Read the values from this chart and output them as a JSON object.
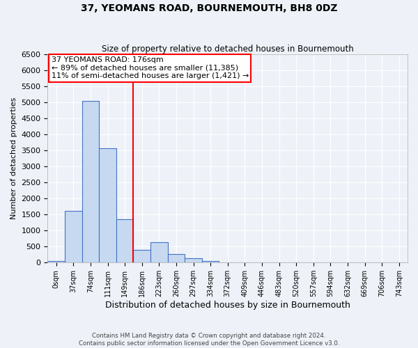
{
  "title": "37, YEOMANS ROAD, BOURNEMOUTH, BH8 0DZ",
  "subtitle": "Size of property relative to detached houses in Bournemouth",
  "xlabel": "Distribution of detached houses by size in Bournemouth",
  "ylabel": "Number of detached properties",
  "bar_labels": [
    "0sqm",
    "37sqm",
    "74sqm",
    "111sqm",
    "149sqm",
    "186sqm",
    "223sqm",
    "260sqm",
    "297sqm",
    "334sqm",
    "372sqm",
    "409sqm",
    "446sqm",
    "483sqm",
    "520sqm",
    "557sqm",
    "594sqm",
    "632sqm",
    "669sqm",
    "706sqm",
    "743sqm"
  ],
  "bar_values": [
    55,
    1610,
    5050,
    3570,
    1350,
    400,
    630,
    270,
    130,
    55,
    10,
    3,
    1,
    0,
    0,
    0,
    0,
    0,
    0,
    0,
    0
  ],
  "bar_color": "#c6d9f0",
  "bar_edgecolor": "#4472c4",
  "ylim": [
    0,
    6500
  ],
  "yticks": [
    0,
    500,
    1000,
    1500,
    2000,
    2500,
    3000,
    3500,
    4000,
    4500,
    5000,
    5500,
    6000,
    6500
  ],
  "annotation_title": "37 YEOMANS ROAD: 176sqm",
  "annotation_line1": "← 89% of detached houses are smaller (11,385)",
  "annotation_line2": "11% of semi-detached houses are larger (1,421) →",
  "footer_line1": "Contains HM Land Registry data © Crown copyright and database right 2024.",
  "footer_line2": "Contains public sector information licensed under the Open Government Licence v3.0.",
  "background_color": "#eef2f8",
  "plot_bg_color": "#eef2f8",
  "grid_color": "#ffffff",
  "red_line_index": 5
}
